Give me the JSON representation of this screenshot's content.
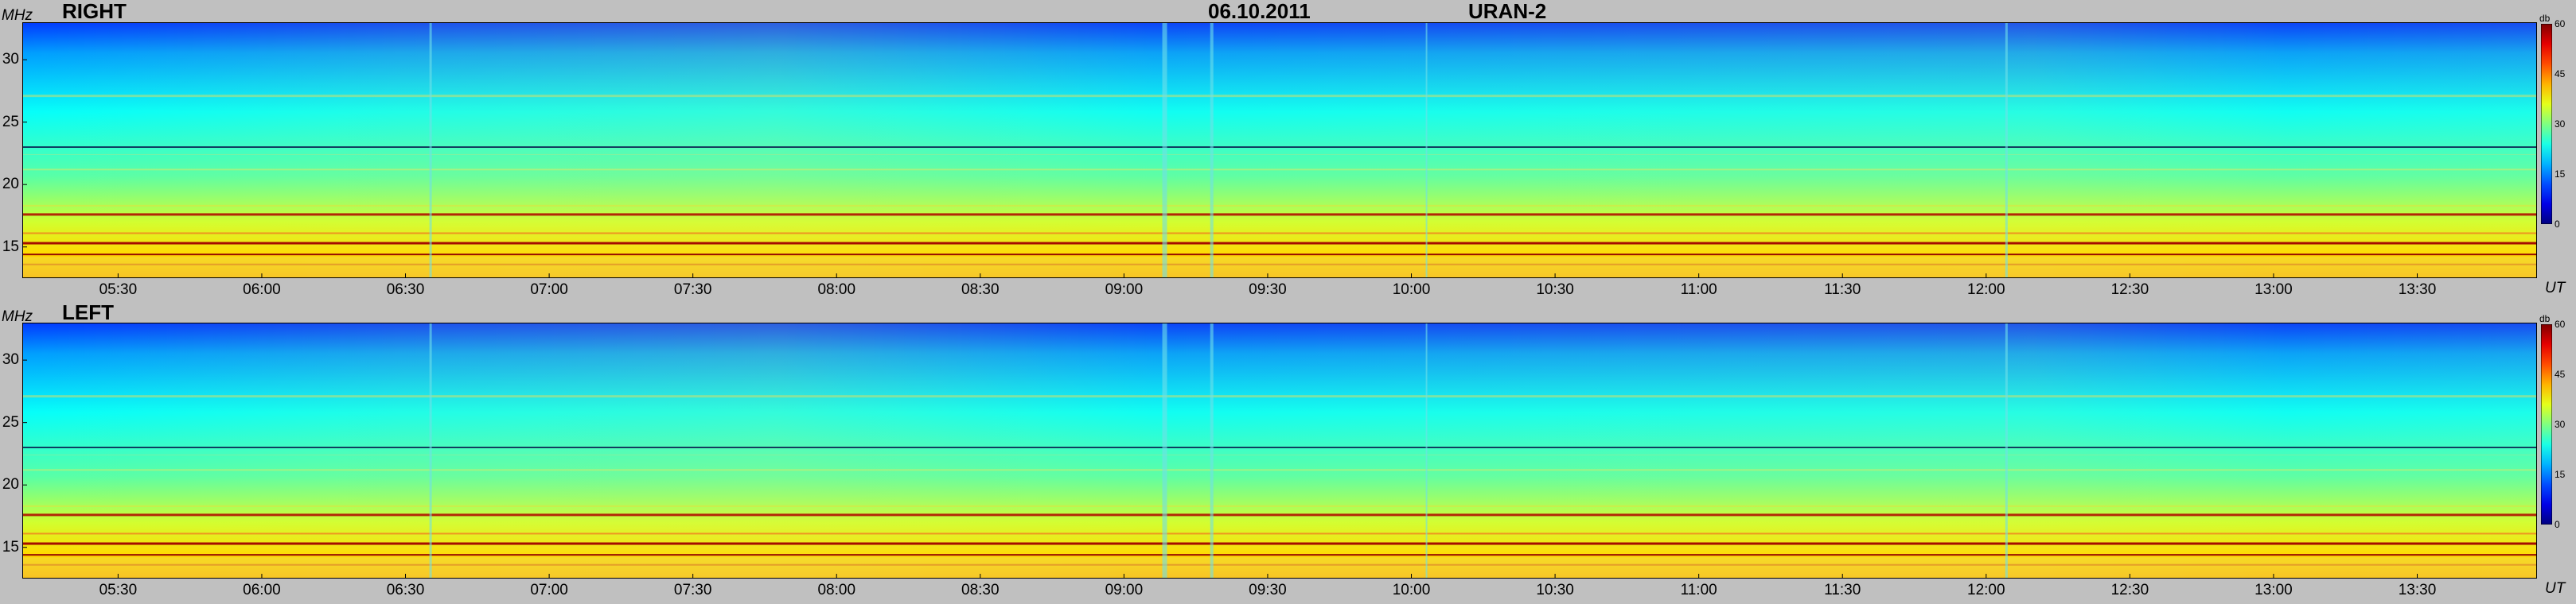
{
  "header": {
    "date": "06.10.2011",
    "instrument": "URAN-2"
  },
  "axis_units": {
    "y": "MHz",
    "x": "UT",
    "colorbar": "db"
  },
  "chart_data": [
    {
      "type": "heatmap",
      "title": "RIGHT",
      "ylabel": "MHz",
      "xlabel": "UT",
      "y_ticks": [
        15,
        20,
        25,
        30
      ],
      "ylim": [
        12.5,
        33
      ],
      "x_ticks": [
        "05:30",
        "06:00",
        "06:30",
        "07:00",
        "07:30",
        "08:00",
        "08:30",
        "09:00",
        "09:30",
        "10:00",
        "10:30",
        "11:00",
        "11:30",
        "12:00",
        "12:30",
        "13:00",
        "13:30"
      ],
      "xlim": [
        "05:10",
        "13:55"
      ],
      "colorbar": {
        "label": "db",
        "ticks": [
          0,
          15,
          30,
          45,
          60
        ],
        "range": [
          0,
          60
        ]
      },
      "grid": false
    },
    {
      "type": "heatmap",
      "title": "LEFT",
      "ylabel": "MHz",
      "xlabel": "UT",
      "y_ticks": [
        15,
        20,
        25,
        30
      ],
      "ylim": [
        12.5,
        33
      ],
      "x_ticks": [
        "05:30",
        "06:00",
        "06:30",
        "07:00",
        "07:30",
        "08:00",
        "08:30",
        "09:00",
        "09:30",
        "10:00",
        "10:30",
        "11:00",
        "11:30",
        "12:00",
        "12:30",
        "13:00",
        "13:30"
      ],
      "xlim": [
        "05:10",
        "13:55"
      ],
      "colorbar": {
        "label": "db",
        "ticks": [
          0,
          15,
          30,
          45,
          60
        ],
        "range": [
          0,
          60
        ]
      },
      "grid": false
    }
  ],
  "colors": {
    "background": "#c0c0c0",
    "low": "#0000c8",
    "mid": "#40d0e8",
    "high": "#f0f040",
    "max": "#a00000"
  }
}
